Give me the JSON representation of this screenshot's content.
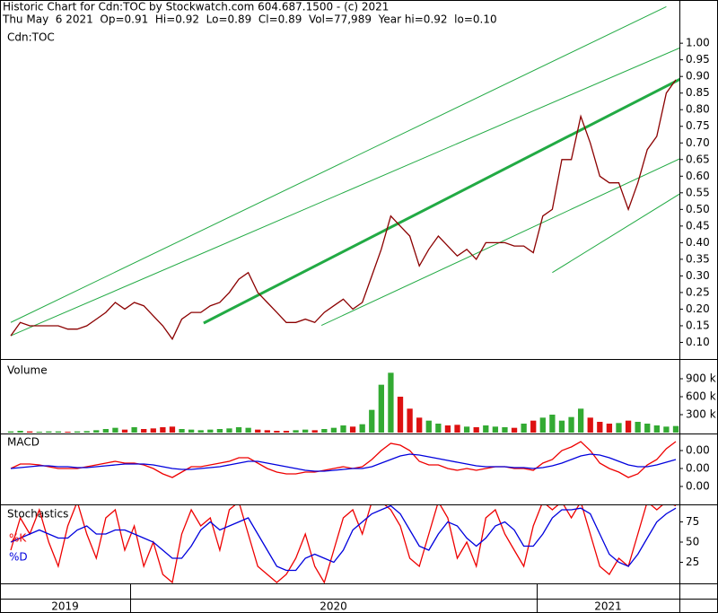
{
  "header": {
    "title": "Historic Chart for Cdn:TOC by Stockwatch.com 604.687.1500 - (c) 2021",
    "subtitle": "Thu May  6 2021  Op=0.91  Hi=0.92  Lo=0.89  Cl=0.89  Vol=77,989  Year hi=0.92  lo=0.10"
  },
  "x_axis": {
    "labels": [
      "2019",
      "2020",
      "2021"
    ]
  },
  "chart_data": [
    {
      "type": "line",
      "title": "Cdn:TOC",
      "ylim": [
        0.05,
        1.13
      ],
      "yticks": [
        {
          "value": 0.1,
          "label": "0.10"
        },
        {
          "value": 0.15,
          "label": "0.15"
        },
        {
          "value": 0.2,
          "label": "0.20"
        },
        {
          "value": 0.25,
          "label": "0.25"
        },
        {
          "value": 0.3,
          "label": "0.30"
        },
        {
          "value": 0.35,
          "label": "0.35"
        },
        {
          "value": 0.4,
          "label": "0.40"
        },
        {
          "value": 0.45,
          "label": "0.45"
        },
        {
          "value": 0.5,
          "label": "0.50"
        },
        {
          "value": 0.55,
          "label": "0.55"
        },
        {
          "value": 0.6,
          "label": "0.60"
        },
        {
          "value": 0.65,
          "label": "0.65"
        },
        {
          "value": 0.7,
          "label": "0.70"
        },
        {
          "value": 0.75,
          "label": "0.75"
        },
        {
          "value": 0.8,
          "label": "0.80"
        },
        {
          "value": 0.85,
          "label": "0.85"
        },
        {
          "value": 0.9,
          "label": "0.90"
        },
        {
          "value": 0.95,
          "label": "0.95"
        },
        {
          "value": 1.0,
          "label": "1.00"
        }
      ],
      "series": [
        {
          "color": "#8b0000",
          "values": [
            0.12,
            0.16,
            0.15,
            0.15,
            0.15,
            0.15,
            0.14,
            0.14,
            0.15,
            0.17,
            0.19,
            0.22,
            0.2,
            0.22,
            0.21,
            0.18,
            0.15,
            0.11,
            0.17,
            0.19,
            0.19,
            0.21,
            0.22,
            0.25,
            0.29,
            0.31,
            0.25,
            0.22,
            0.19,
            0.16,
            0.16,
            0.17,
            0.16,
            0.19,
            0.21,
            0.23,
            0.2,
            0.22,
            0.3,
            0.38,
            0.48,
            0.45,
            0.42,
            0.33,
            0.38,
            0.42,
            0.39,
            0.36,
            0.38,
            0.35,
            0.4,
            0.4,
            0.4,
            0.39,
            0.39,
            0.37,
            0.48,
            0.5,
            0.65,
            0.65,
            0.78,
            0.7,
            0.6,
            0.58,
            0.58,
            0.5,
            0.58,
            0.68,
            0.72,
            0.85,
            0.89
          ]
        }
      ],
      "trendlines": [
        {
          "color": "#22aa44",
          "width": 1,
          "x": [
            0,
            69
          ],
          "values": [
            0.16,
            1.11
          ]
        },
        {
          "color": "#22aa44",
          "width": 1,
          "x": [
            0,
            74
          ],
          "values": [
            0.12,
            1.03
          ]
        },
        {
          "color": "#22aa44",
          "width": 3,
          "x": [
            20.3,
            74
          ],
          "values": [
            0.158,
            0.944
          ]
        },
        {
          "color": "#22aa44",
          "width": 1,
          "x": [
            32.7,
            74
          ],
          "values": [
            0.151,
            0.7
          ]
        },
        {
          "color": "#22aa44",
          "width": 1,
          "x": [
            57,
            74
          ],
          "values": [
            0.31,
            0.61
          ]
        }
      ]
    },
    {
      "type": "bar",
      "title": "Volume",
      "ylim": [
        0,
        1215000
      ],
      "up_color": "#33aa33",
      "down_color": "#dd1111",
      "yticks": [
        {
          "value": 300000,
          "label": "300 k"
        },
        {
          "value": 600000,
          "label": "600 k"
        },
        {
          "value": 900000,
          "label": "900 k"
        }
      ],
      "values": [
        20000,
        30000,
        20000,
        15000,
        20000,
        20000,
        15000,
        20000,
        25000,
        40000,
        60000,
        80000,
        50000,
        90000,
        60000,
        70000,
        90000,
        100000,
        60000,
        50000,
        40000,
        50000,
        60000,
        70000,
        90000,
        80000,
        50000,
        40000,
        30000,
        30000,
        40000,
        50000,
        40000,
        60000,
        80000,
        120000,
        100000,
        140000,
        380000,
        800000,
        1000000,
        600000,
        400000,
        250000,
        200000,
        150000,
        120000,
        130000,
        100000,
        90000,
        120000,
        100000,
        90000,
        80000,
        150000,
        200000,
        250000,
        300000,
        200000,
        260000,
        400000,
        250000,
        180000,
        150000,
        160000,
        200000,
        180000,
        150000,
        120000,
        100000,
        110000
      ]
    },
    {
      "type": "line",
      "title": "MACD",
      "ylim": [
        -0.008,
        0.0078
      ],
      "yticks": [
        {
          "value": -0.004,
          "label": "0.00"
        },
        {
          "value": 0,
          "label": "0.00"
        },
        {
          "value": 0.004,
          "label": "0.00"
        }
      ],
      "series": [
        {
          "color": "#ee0000",
          "values": [
            0,
            0.001,
            0.001,
            0.0008,
            0.0004,
            0,
            0,
            0,
            0.0004,
            0.0008,
            0.0012,
            0.0016,
            0.0012,
            0.0012,
            0.0008,
            0,
            -0.0012,
            -0.002,
            -0.0008,
            0.0004,
            0.0004,
            0.0008,
            0.0012,
            0.0016,
            0.0024,
            0.0024,
            0.0012,
            0,
            -0.0008,
            -0.0012,
            -0.0012,
            -0.0008,
            -0.0008,
            -0.0004,
            0,
            0.0004,
            0,
            0.0004,
            0.002,
            0.004,
            0.0056,
            0.0052,
            0.004,
            0.0016,
            0.0008,
            0.0008,
            0,
            -0.0004,
            0,
            -0.0004,
            0,
            0.0004,
            0.0004,
            0,
            0,
            -0.0004,
            0.0012,
            0.002,
            0.004,
            0.0048,
            0.006,
            0.004,
            0.0012,
            0,
            -0.0008,
            -0.002,
            -0.0012,
            0.0008,
            0.002,
            0.0044,
            0.006
          ]
        },
        {
          "color": "#0000dd",
          "values": [
            0,
            0.0002,
            0.0004,
            0.0006,
            0.0006,
            0.0004,
            0.0004,
            0.0002,
            0.0002,
            0.0004,
            0.0006,
            0.0008,
            0.001,
            0.001,
            0.001,
            0.0008,
            0.0004,
            0,
            -0.0002,
            -0.0002,
            0,
            0.0002,
            0.0004,
            0.0008,
            0.0012,
            0.0016,
            0.0016,
            0.0012,
            0.0008,
            0.0004,
            0,
            -0.0004,
            -0.0006,
            -0.0006,
            -0.0004,
            -0.0002,
            0,
            0,
            0.0004,
            0.0012,
            0.002,
            0.0028,
            0.0032,
            0.003,
            0.0026,
            0.0022,
            0.0018,
            0.0014,
            0.001,
            0.0006,
            0.0004,
            0.0004,
            0.0004,
            0.0002,
            0.0002,
            0,
            0.0002,
            0.0006,
            0.0012,
            0.002,
            0.0028,
            0.0032,
            0.003,
            0.0024,
            0.0016,
            0.0008,
            0.0004,
            0.0004,
            0.0008,
            0.0014,
            0.002
          ]
        }
      ]
    },
    {
      "type": "line",
      "title": "Stochastics",
      "ylim": [
        0,
        100
      ],
      "yticks": [
        25,
        50,
        75
      ],
      "series": [
        {
          "name": "%K",
          "color": "#ee0000",
          "values": [
            40,
            80,
            60,
            90,
            50,
            20,
            70,
            100,
            60,
            30,
            80,
            90,
            40,
            70,
            20,
            50,
            10,
            0,
            60,
            90,
            70,
            80,
            40,
            90,
            100,
            60,
            20,
            10,
            0,
            10,
            30,
            60,
            20,
            0,
            40,
            80,
            90,
            60,
            100,
            100,
            90,
            70,
            30,
            20,
            60,
            100,
            80,
            30,
            50,
            20,
            80,
            90,
            60,
            40,
            20,
            70,
            100,
            90,
            100,
            80,
            100,
            60,
            20,
            10,
            30,
            20,
            60,
            100,
            90,
            100,
            95
          ]
        },
        {
          "name": "%D",
          "color": "#0000dd",
          "values": [
            50,
            55,
            60,
            65,
            60,
            55,
            55,
            65,
            70,
            60,
            60,
            65,
            65,
            60,
            55,
            50,
            40,
            30,
            30,
            45,
            65,
            75,
            65,
            70,
            75,
            80,
            60,
            40,
            20,
            15,
            15,
            30,
            35,
            30,
            25,
            40,
            65,
            75,
            85,
            90,
            95,
            85,
            65,
            45,
            40,
            60,
            75,
            70,
            55,
            45,
            55,
            70,
            75,
            65,
            45,
            45,
            60,
            80,
            90,
            90,
            92,
            85,
            60,
            35,
            25,
            20,
            35,
            55,
            75,
            85,
            92
          ]
        }
      ]
    }
  ]
}
